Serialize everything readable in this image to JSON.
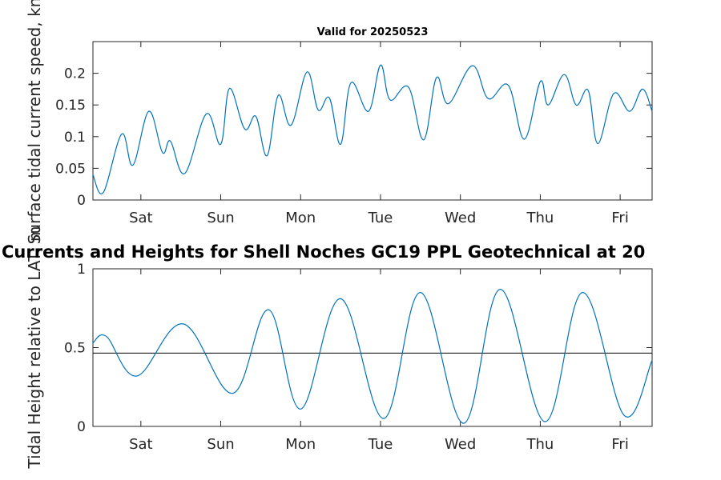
{
  "chart_data": [
    {
      "type": "line",
      "title": "Valid for 20250523",
      "ylabel": "Surface tidal current speed, kn",
      "xlabel": "",
      "xlim": [
        0,
        7
      ],
      "ylim": [
        0,
        0.25
      ],
      "yticks": [
        0,
        0.05,
        0.1,
        0.15,
        0.2
      ],
      "ytick_labels": [
        "0",
        "0.05",
        "0.1",
        "0.15",
        "0.2"
      ],
      "xticks": [
        0.6,
        1.6,
        2.6,
        3.6,
        4.6,
        5.6,
        6.6
      ],
      "xtick_labels": [
        "Sat",
        "Sun",
        "Mon",
        "Tue",
        "Wed",
        "Thu",
        "Fri"
      ],
      "grid": false,
      "color": "#0072BD",
      "series": [
        {
          "x": [
            0,
            0.13,
            0.36,
            0.5,
            0.7,
            0.87,
            0.97,
            1.15,
            1.42,
            1.6,
            1.71,
            1.9,
            2.04,
            2.18,
            2.32,
            2.48,
            2.68,
            2.82,
            2.96,
            3.1,
            3.23,
            3.45,
            3.6,
            3.72,
            3.95,
            4.14,
            4.3,
            4.45,
            4.75,
            4.95,
            5.2,
            5.4,
            5.6,
            5.7,
            5.9,
            6.05,
            6.2,
            6.32,
            6.52,
            6.72,
            6.88,
            7.0
          ],
          "values": [
            0.04,
            0.012,
            0.104,
            0.055,
            0.14,
            0.075,
            0.093,
            0.042,
            0.136,
            0.088,
            0.176,
            0.112,
            0.132,
            0.07,
            0.165,
            0.118,
            0.202,
            0.142,
            0.161,
            0.088,
            0.185,
            0.14,
            0.213,
            0.158,
            0.178,
            0.095,
            0.193,
            0.152,
            0.212,
            0.16,
            0.181,
            0.096,
            0.187,
            0.15,
            0.198,
            0.15,
            0.173,
            0.089,
            0.168,
            0.14,
            0.175,
            0.14
          ]
        }
      ]
    },
    {
      "type": "line",
      "title": "Currents and Heights for Shell Noches   GC19 PPL  Geotechnical at 20",
      "ylabel": "Tidal Height relative to LAT, m",
      "xlabel": "",
      "xlim": [
        0,
        7
      ],
      "ylim": [
        0,
        1
      ],
      "yticks": [
        0,
        0.5,
        1
      ],
      "ytick_labels": [
        "0",
        "0.5",
        "1"
      ],
      "xticks": [
        0.6,
        1.6,
        2.6,
        3.6,
        4.6,
        5.6,
        6.6
      ],
      "xtick_labels": [
        "Sat",
        "Sun",
        "Mon",
        "Tue",
        "Wed",
        "Thu",
        "Fri"
      ],
      "grid": false,
      "reference_line": 0.465,
      "color": "#0072BD",
      "series": [
        {
          "x": [
            0,
            0.17,
            0.55,
            1.13,
            1.75,
            2.2,
            2.6,
            3.1,
            3.64,
            4.1,
            4.64,
            5.1,
            5.66,
            6.13,
            6.65,
            7.0
          ],
          "values": [
            0.53,
            0.57,
            0.32,
            0.65,
            0.21,
            0.74,
            0.11,
            0.81,
            0.05,
            0.85,
            0.02,
            0.87,
            0.03,
            0.85,
            0.07,
            0.42
          ]
        }
      ]
    }
  ]
}
